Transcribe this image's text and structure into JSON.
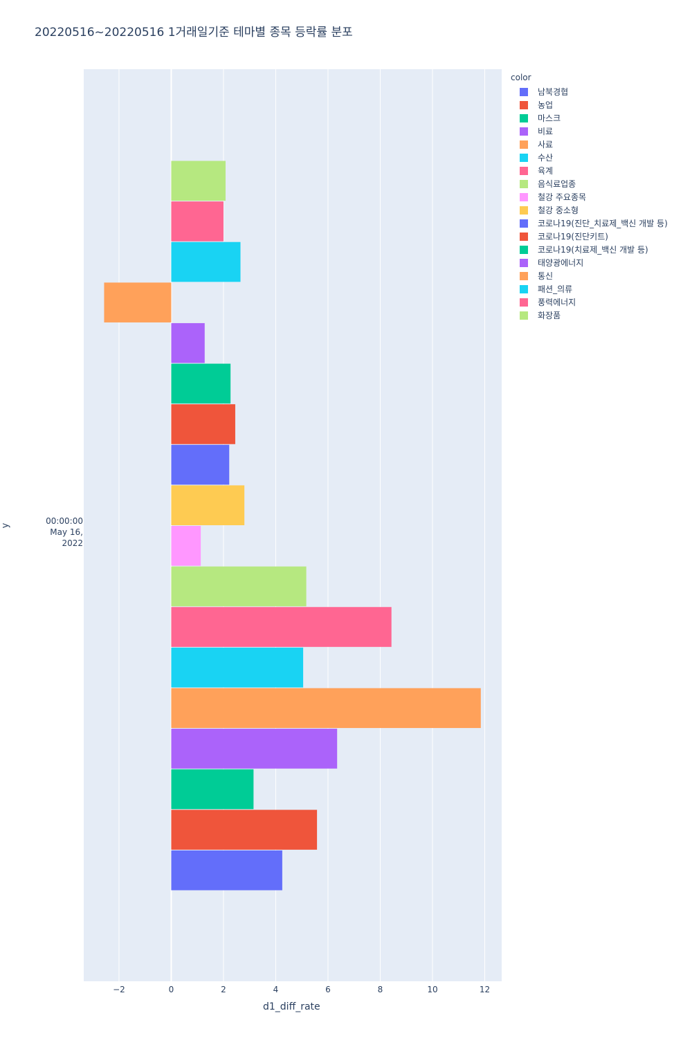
{
  "chart_data": {
    "type": "bar",
    "orientation": "horizontal",
    "title": "20220516~20220516 1거래일기준 테마별 종목 등락률 분포",
    "xlabel": "d1_diff_rate",
    "ylabel": "y",
    "y_tick": [
      "00:00:00",
      "May 16, 2022"
    ],
    "xlim": [
      -3.35,
      12.65
    ],
    "x_ticks": [
      -2,
      0,
      2,
      4,
      6,
      8,
      10,
      12
    ],
    "x_tick_labels": [
      "−2",
      "0",
      "2",
      "4",
      "6",
      "8",
      "10",
      "12"
    ],
    "legend_title": "color",
    "series": [
      {
        "name": "남북경협",
        "color": "#636efa",
        "value": 4.25
      },
      {
        "name": "농업",
        "color": "#ef553b",
        "value": 5.58
      },
      {
        "name": "마스크",
        "color": "#00cc96",
        "value": 3.15
      },
      {
        "name": "비료",
        "color": "#ab63fa",
        "value": 6.35
      },
      {
        "name": "사료",
        "color": "#ffa15a",
        "value": 11.85
      },
      {
        "name": "수산",
        "color": "#19d3f3",
        "value": 5.05
      },
      {
        "name": "육계",
        "color": "#ff6692",
        "value": 8.43
      },
      {
        "name": "음식료업종",
        "color": "#b6e880",
        "value": 5.17
      },
      {
        "name": "철강 주요종목",
        "color": "#ff97ff",
        "value": 1.13
      },
      {
        "name": "철강 중소형",
        "color": "#fecb52",
        "value": 2.8
      },
      {
        "name": "코로나19(진단_치료제_백신 개발 등)",
        "color": "#636efa",
        "value": 2.22
      },
      {
        "name": "코로나19(진단키트)",
        "color": "#ef553b",
        "value": 2.45
      },
      {
        "name": "코로나19(치료제_백신 개발 등)",
        "color": "#00cc96",
        "value": 2.27
      },
      {
        "name": "태양광에너지",
        "color": "#ab63fa",
        "value": 1.28
      },
      {
        "name": "통신",
        "color": "#ffa15a",
        "value": -2.57
      },
      {
        "name": "패션_의류",
        "color": "#19d3f3",
        "value": 2.65
      },
      {
        "name": "풍력에너지",
        "color": "#ff6692",
        "value": 2.0
      },
      {
        "name": "화장품",
        "color": "#b6e880",
        "value": 2.08
      }
    ]
  }
}
